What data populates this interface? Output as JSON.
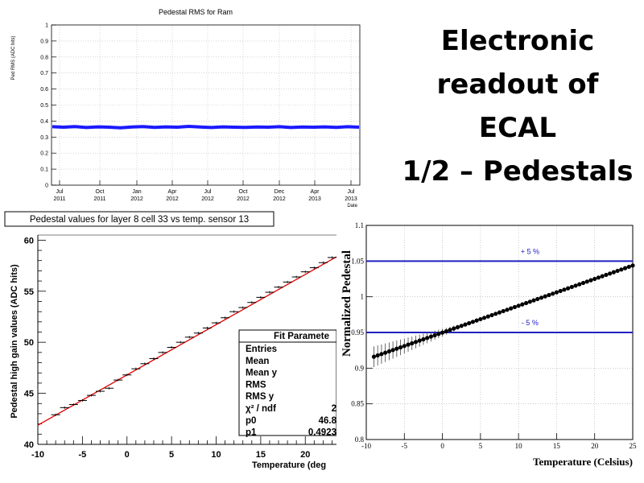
{
  "slide": {
    "title_lines": [
      "Electronic",
      "readout  of",
      "ECAL",
      "1/2 – Pedestals"
    ]
  },
  "chart_data": [
    {
      "type": "line",
      "title": "Pedestal RMS for Ram",
      "ylabel": "Ped RMS (ADC hits)",
      "xlabel": "Date",
      "ylim": [
        0,
        1
      ],
      "yticks": [
        "0",
        "0.1",
        "0.2",
        "0.3",
        "0.4",
        "0.5",
        "0.6",
        "0.7",
        "0.8",
        "0.9",
        "1"
      ],
      "xticks": [
        {
          "month": "Jul",
          "year": "2011"
        },
        {
          "month": "Oct",
          "year": "2011"
        },
        {
          "month": "Jan",
          "year": "2012"
        },
        {
          "month": "Apr",
          "year": "2012"
        },
        {
          "month": "Jul",
          "year": "2012"
        },
        {
          "month": "Oct",
          "year": "2012"
        },
        {
          "month": "Dec",
          "year": "2012"
        },
        {
          "month": "Apr",
          "year": "2013"
        },
        {
          "month": "Jul",
          "year": "2013"
        }
      ],
      "series": [
        {
          "values": [
            0.365,
            0.362,
            0.366,
            0.36,
            0.364,
            0.362,
            0.358,
            0.363,
            0.366,
            0.361,
            0.364,
            0.362,
            0.367,
            0.363,
            0.36,
            0.364,
            0.362,
            0.361,
            0.363,
            0.362,
            0.365,
            0.36,
            0.363,
            0.362,
            0.364,
            0.361,
            0.365,
            0.362
          ]
        }
      ],
      "color": "#1a1aff",
      "grid": true
    },
    {
      "type": "scatter",
      "title": "Pedestal values for layer 8 cell 33 vs temp. sensor 13",
      "xlabel": "Temperature (deg",
      "ylabel": "Pedestal high gain values (ADC hits)",
      "xlim": [
        -10,
        23.5
      ],
      "ylim": [
        40,
        60.5
      ],
      "xticks": [
        "-10",
        "-5",
        "0",
        "5",
        "10",
        "15",
        "20"
      ],
      "yticks": [
        "40",
        "45",
        "50",
        "55",
        "60"
      ],
      "points": {
        "x": [
          -8,
          -7,
          -6,
          -5,
          -4,
          -3,
          -2,
          -1,
          0,
          1,
          2,
          3,
          4,
          5,
          6,
          7,
          8,
          9,
          10,
          11,
          12,
          13,
          14,
          15,
          16,
          17,
          18,
          19,
          20,
          21,
          22,
          23
        ],
        "y": [
          42.9,
          43.6,
          43.9,
          44.3,
          44.8,
          45.2,
          45.5,
          46.3,
          46.8,
          47.4,
          47.9,
          48.4,
          49.0,
          49.5,
          50.0,
          50.5,
          50.9,
          51.4,
          51.9,
          52.4,
          53.0,
          53.4,
          53.9,
          54.4,
          54.9,
          55.4,
          55.9,
          56.4,
          56.9,
          57.3,
          57.8,
          58.3
        ]
      },
      "fit": {
        "p0": 46.8,
        "p1": 0.4923,
        "color": "#e00000"
      },
      "stats": {
        "title": "Fit Paramete",
        "rows": [
          {
            "label": "Entries",
            "value": ""
          },
          {
            "label": "Mean",
            "value": ""
          },
          {
            "label": "Mean y",
            "value": ""
          },
          {
            "label": "RMS",
            "value": ""
          },
          {
            "label": "RMS y",
            "value": ""
          },
          {
            "label": "χ² / ndf",
            "value": "2"
          },
          {
            "label": "p0",
            "value": "46.8"
          },
          {
            "label": "p1",
            "value": "0.4923"
          }
        ]
      },
      "grid": false
    },
    {
      "type": "scatter",
      "xlabel": "Temperature (Celsius)",
      "ylabel": "Normalized Pedestal",
      "xlim": [
        -10,
        25
      ],
      "ylim": [
        0.8,
        1.1
      ],
      "xticks": [
        "-10",
        "-5",
        "0",
        "5",
        "10",
        "15",
        "20",
        "25"
      ],
      "yticks": [
        "0.8",
        "0.85",
        "0.9",
        "0.95",
        "1",
        "1.05",
        "1.1"
      ],
      "reference_lines": [
        {
          "y": 1.05,
          "label": "+ 5 %"
        },
        {
          "y": 0.95,
          "label": "- 5 %"
        }
      ],
      "points": {
        "x_start": -9,
        "x_end": 25,
        "x_step": 0.5,
        "y_at_start": 0.916,
        "slope": 0.00376
      },
      "line_color": "#2020c0",
      "grid": true
    }
  ]
}
